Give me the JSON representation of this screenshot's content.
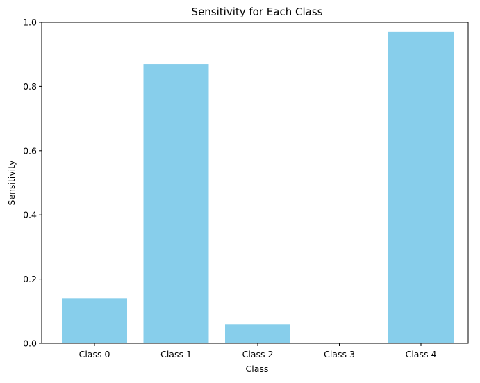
{
  "chart_data": {
    "type": "bar",
    "title": "Sensitivity for Each Class",
    "xlabel": "Class",
    "ylabel": "Sensitivity",
    "categories": [
      "Class 0",
      "Class 1",
      "Class 2",
      "Class 3",
      "Class 4"
    ],
    "values": [
      0.14,
      0.87,
      0.06,
      0.0,
      0.97
    ],
    "ylim": [
      0,
      1.0
    ],
    "yticks": [
      "0.0",
      "0.2",
      "0.4",
      "0.6",
      "0.8",
      "1.0"
    ],
    "grid": false,
    "colors": {
      "bar": "#87CEEB",
      "axis": "#000000"
    }
  }
}
